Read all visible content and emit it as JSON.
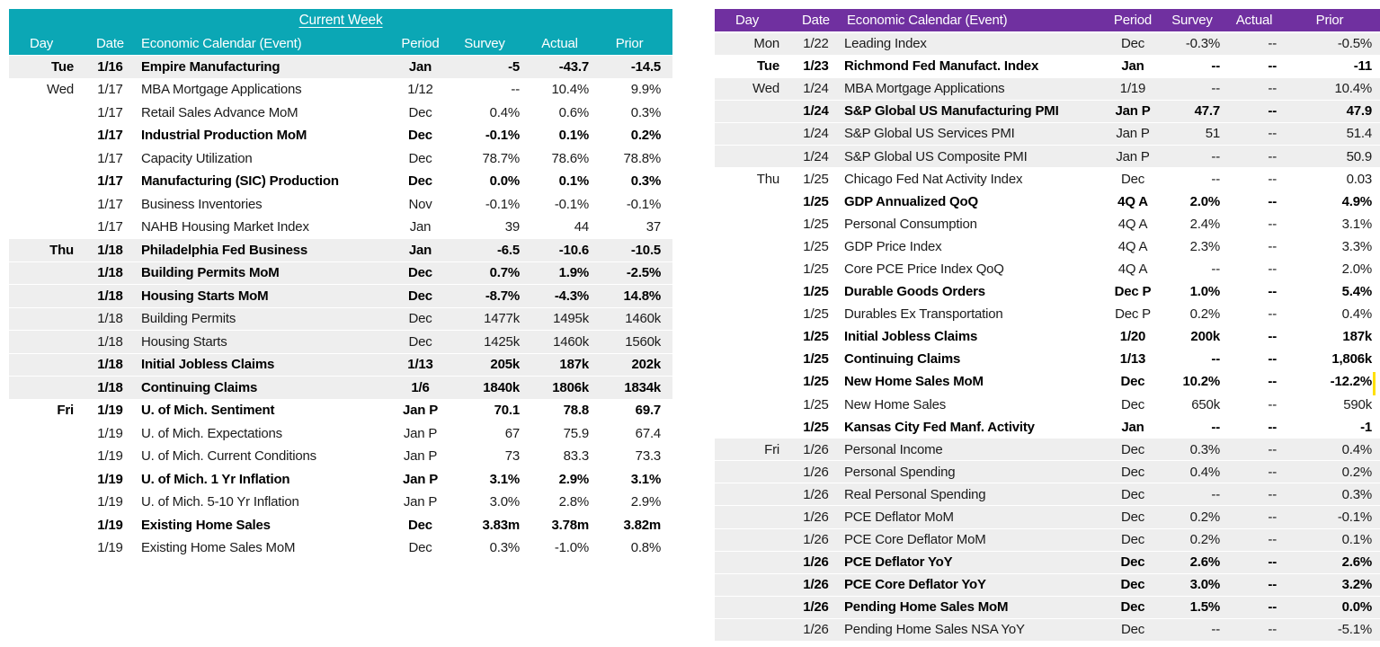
{
  "page": {
    "background": "#FFFFFF",
    "shaded_row_color": "#EEEEEE"
  },
  "left_table": {
    "title": "Current Week",
    "accent_color": "#0BA7B5",
    "columns": [
      "Day",
      "Date",
      "Economic Calendar (Event)",
      "Period",
      "Survey",
      "Actual",
      "Prior"
    ],
    "rows": [
      {
        "day": "Tue",
        "date": "1/16",
        "event": "Empire Manufacturing",
        "period": "Jan",
        "survey": "-5",
        "actual": "-43.7",
        "prior": "-14.5",
        "bold": true,
        "shaded": true
      },
      {
        "day": "Wed",
        "date": "1/17",
        "event": "MBA Mortgage Applications",
        "period": "1/12",
        "survey": "--",
        "actual": "10.4%",
        "prior": "9.9%",
        "bold": false,
        "shaded": false
      },
      {
        "day": "",
        "date": "1/17",
        "event": "Retail Sales Advance MoM",
        "period": "Dec",
        "survey": "0.4%",
        "actual": "0.6%",
        "prior": "0.3%",
        "bold": false,
        "shaded": false
      },
      {
        "day": "",
        "date": "1/17",
        "event": "Industrial Production MoM",
        "period": "Dec",
        "survey": "-0.1%",
        "actual": "0.1%",
        "prior": "0.2%",
        "bold": true,
        "shaded": false
      },
      {
        "day": "",
        "date": "1/17",
        "event": "Capacity Utilization",
        "period": "Dec",
        "survey": "78.7%",
        "actual": "78.6%",
        "prior": "78.8%",
        "bold": false,
        "shaded": false
      },
      {
        "day": "",
        "date": "1/17",
        "event": "Manufacturing (SIC) Production",
        "period": "Dec",
        "survey": "0.0%",
        "actual": "0.1%",
        "prior": "0.3%",
        "bold": true,
        "shaded": false
      },
      {
        "day": "",
        "date": "1/17",
        "event": "Business Inventories",
        "period": "Nov",
        "survey": "-0.1%",
        "actual": "-0.1%",
        "prior": "-0.1%",
        "bold": false,
        "shaded": false
      },
      {
        "day": "",
        "date": "1/17",
        "event": "NAHB Housing Market Index",
        "period": "Jan",
        "survey": "39",
        "actual": "44",
        "prior": "37",
        "bold": false,
        "shaded": false
      },
      {
        "day": "Thu",
        "date": "1/18",
        "event": "Philadelphia Fed Business",
        "period": "Jan",
        "survey": "-6.5",
        "actual": "-10.6",
        "prior": "-10.5",
        "bold": true,
        "shaded": true
      },
      {
        "day": "",
        "date": "1/18",
        "event": "Building Permits MoM",
        "period": "Dec",
        "survey": "0.7%",
        "actual": "1.9%",
        "prior": "-2.5%",
        "bold": true,
        "shaded": true
      },
      {
        "day": "",
        "date": "1/18",
        "event": "Housing Starts MoM",
        "period": "Dec",
        "survey": "-8.7%",
        "actual": "-4.3%",
        "prior": "14.8%",
        "bold": true,
        "shaded": true
      },
      {
        "day": "",
        "date": "1/18",
        "event": "Building Permits",
        "period": "Dec",
        "survey": "1477k",
        "actual": "1495k",
        "prior": "1460k",
        "bold": false,
        "shaded": true
      },
      {
        "day": "",
        "date": "1/18",
        "event": "Housing Starts",
        "period": "Dec",
        "survey": "1425k",
        "actual": "1460k",
        "prior": "1560k",
        "bold": false,
        "shaded": true
      },
      {
        "day": "",
        "date": "1/18",
        "event": "Initial Jobless Claims",
        "period": "1/13",
        "survey": "205k",
        "actual": "187k",
        "prior": "202k",
        "bold": true,
        "shaded": true
      },
      {
        "day": "",
        "date": "1/18",
        "event": "Continuing Claims",
        "period": "1/6",
        "survey": "1840k",
        "actual": "1806k",
        "prior": "1834k",
        "bold": true,
        "shaded": true
      },
      {
        "day": "Fri",
        "date": "1/19",
        "event": "U. of Mich. Sentiment",
        "period": "Jan P",
        "survey": "70.1",
        "actual": "78.8",
        "prior": "69.7",
        "bold": true,
        "shaded": false
      },
      {
        "day": "",
        "date": "1/19",
        "event": "U. of Mich. Expectations",
        "period": "Jan P",
        "survey": "67",
        "actual": "75.9",
        "prior": "67.4",
        "bold": false,
        "shaded": false
      },
      {
        "day": "",
        "date": "1/19",
        "event": "U. of Mich. Current Conditions",
        "period": "Jan P",
        "survey": "73",
        "actual": "83.3",
        "prior": "73.3",
        "bold": false,
        "shaded": false
      },
      {
        "day": "",
        "date": "1/19",
        "event": "U. of Mich. 1 Yr Inflation",
        "period": "Jan P",
        "survey": "3.1%",
        "actual": "2.9%",
        "prior": "3.1%",
        "bold": true,
        "shaded": false
      },
      {
        "day": "",
        "date": "1/19",
        "event": "U. of Mich. 5-10 Yr Inflation",
        "period": "Jan P",
        "survey": "3.0%",
        "actual": "2.8%",
        "prior": "2.9%",
        "bold": false,
        "shaded": false
      },
      {
        "day": "",
        "date": "1/19",
        "event": "Existing Home Sales",
        "period": "Dec",
        "survey": "3.83m",
        "actual": "3.78m",
        "prior": "3.82m",
        "bold": true,
        "shaded": false
      },
      {
        "day": "",
        "date": "1/19",
        "event": "Existing Home Sales MoM",
        "period": "Dec",
        "survey": "0.3%",
        "actual": "-1.0%",
        "prior": "0.8%",
        "bold": false,
        "shaded": false
      }
    ]
  },
  "right_table": {
    "accent_color": "#7030A0",
    "columns": [
      "Day",
      "Date",
      "Economic Calendar (Event)",
      "Period",
      "Survey",
      "Actual",
      "Prior"
    ],
    "rows": [
      {
        "day": "Mon",
        "date": "1/22",
        "event": "Leading Index",
        "period": "Dec",
        "survey": "-0.3%",
        "actual": "--",
        "prior": "-0.5%",
        "bold": false,
        "shaded": true
      },
      {
        "day": "Tue",
        "date": "1/23",
        "event": "Richmond Fed Manufact. Index",
        "period": "Jan",
        "survey": "--",
        "actual": "--",
        "prior": "-11",
        "bold": true,
        "shaded": false
      },
      {
        "day": "Wed",
        "date": "1/24",
        "event": "MBA Mortgage Applications",
        "period": "1/19",
        "survey": "--",
        "actual": "--",
        "prior": "10.4%",
        "bold": false,
        "shaded": true
      },
      {
        "day": "",
        "date": "1/24",
        "event": "S&P Global US Manufacturing PMI",
        "period": "Jan P",
        "survey": "47.7",
        "actual": "--",
        "prior": "47.9",
        "bold": true,
        "shaded": true
      },
      {
        "day": "",
        "date": "1/24",
        "event": "S&P Global US Services PMI",
        "period": "Jan P",
        "survey": "51",
        "actual": "--",
        "prior": "51.4",
        "bold": false,
        "shaded": true
      },
      {
        "day": "",
        "date": "1/24",
        "event": "S&P Global US Composite PMI",
        "period": "Jan P",
        "survey": "--",
        "actual": "--",
        "prior": "50.9",
        "bold": false,
        "shaded": true
      },
      {
        "day": "Thu",
        "date": "1/25",
        "event": "Chicago Fed Nat Activity Index",
        "period": "Dec",
        "survey": "--",
        "actual": "--",
        "prior": "0.03",
        "bold": false,
        "shaded": false
      },
      {
        "day": "",
        "date": "1/25",
        "event": "GDP Annualized QoQ",
        "period": "4Q A",
        "survey": "2.0%",
        "actual": "--",
        "prior": "4.9%",
        "bold": true,
        "shaded": false
      },
      {
        "day": "",
        "date": "1/25",
        "event": "Personal Consumption",
        "period": "4Q A",
        "survey": "2.4%",
        "actual": "--",
        "prior": "3.1%",
        "bold": false,
        "shaded": false
      },
      {
        "day": "",
        "date": "1/25",
        "event": "GDP Price Index",
        "period": "4Q A",
        "survey": "2.3%",
        "actual": "--",
        "prior": "3.3%",
        "bold": false,
        "shaded": false
      },
      {
        "day": "",
        "date": "1/25",
        "event": "Core PCE Price Index QoQ",
        "period": "4Q A",
        "survey": "--",
        "actual": "--",
        "prior": "2.0%",
        "bold": false,
        "shaded": false
      },
      {
        "day": "",
        "date": "1/25",
        "event": "Durable Goods Orders",
        "period": "Dec P",
        "survey": "1.0%",
        "actual": "--",
        "prior": "5.4%",
        "bold": true,
        "shaded": false
      },
      {
        "day": "",
        "date": "1/25",
        "event": "Durables Ex Transportation",
        "period": "Dec P",
        "survey": "0.2%",
        "actual": "--",
        "prior": "0.4%",
        "bold": false,
        "shaded": false
      },
      {
        "day": "",
        "date": "1/25",
        "event": "Initial Jobless Claims",
        "period": "1/20",
        "survey": "200k",
        "actual": "--",
        "prior": "187k",
        "bold": true,
        "shaded": false
      },
      {
        "day": "",
        "date": "1/25",
        "event": "Continuing Claims",
        "period": "1/13",
        "survey": "--",
        "actual": "--",
        "prior": "1,806k",
        "bold": true,
        "shaded": false
      },
      {
        "day": "",
        "date": "1/25",
        "event": "New Home Sales MoM",
        "period": "Dec",
        "survey": "10.2%",
        "actual": "--",
        "prior": "-12.2%",
        "bold": true,
        "shaded": false
      },
      {
        "day": "",
        "date": "1/25",
        "event": "New Home Sales",
        "period": "Dec",
        "survey": "650k",
        "actual": "--",
        "prior": "590k",
        "bold": false,
        "shaded": false
      },
      {
        "day": "",
        "date": "1/25",
        "event": "Kansas City Fed Manf. Activity",
        "period": "Jan",
        "survey": "--",
        "actual": "--",
        "prior": "-1",
        "bold": true,
        "shaded": false
      },
      {
        "day": "Fri",
        "date": "1/26",
        "event": "Personal Income",
        "period": "Dec",
        "survey": "0.3%",
        "actual": "--",
        "prior": "0.4%",
        "bold": false,
        "shaded": true
      },
      {
        "day": "",
        "date": "1/26",
        "event": "Personal Spending",
        "period": "Dec",
        "survey": "0.4%",
        "actual": "--",
        "prior": "0.2%",
        "bold": false,
        "shaded": true
      },
      {
        "day": "",
        "date": "1/26",
        "event": "Real Personal Spending",
        "period": "Dec",
        "survey": "--",
        "actual": "--",
        "prior": "0.3%",
        "bold": false,
        "shaded": true
      },
      {
        "day": "",
        "date": "1/26",
        "event": "PCE Deflator MoM",
        "period": "Dec",
        "survey": "0.2%",
        "actual": "--",
        "prior": "-0.1%",
        "bold": false,
        "shaded": true
      },
      {
        "day": "",
        "date": "1/26",
        "event": "PCE Core Deflator MoM",
        "period": "Dec",
        "survey": "0.2%",
        "actual": "--",
        "prior": "0.1%",
        "bold": false,
        "shaded": true
      },
      {
        "day": "",
        "date": "1/26",
        "event": "PCE Deflator YoY",
        "period": "Dec",
        "survey": "2.6%",
        "actual": "--",
        "prior": "2.6%",
        "bold": true,
        "shaded": true
      },
      {
        "day": "",
        "date": "1/26",
        "event": "PCE Core Deflator YoY",
        "period": "Dec",
        "survey": "3.0%",
        "actual": "--",
        "prior": "3.2%",
        "bold": true,
        "shaded": true
      },
      {
        "day": "",
        "date": "1/26",
        "event": "Pending Home Sales MoM",
        "period": "Dec",
        "survey": "1.5%",
        "actual": "--",
        "prior": "0.0%",
        "bold": true,
        "shaded": true
      },
      {
        "day": "",
        "date": "1/26",
        "event": "Pending Home Sales NSA YoY",
        "period": "Dec",
        "survey": "--",
        "actual": "--",
        "prior": "-5.1%",
        "bold": false,
        "shaded": true
      }
    ]
  },
  "cell_cursor": {
    "color": "#FFE000"
  }
}
